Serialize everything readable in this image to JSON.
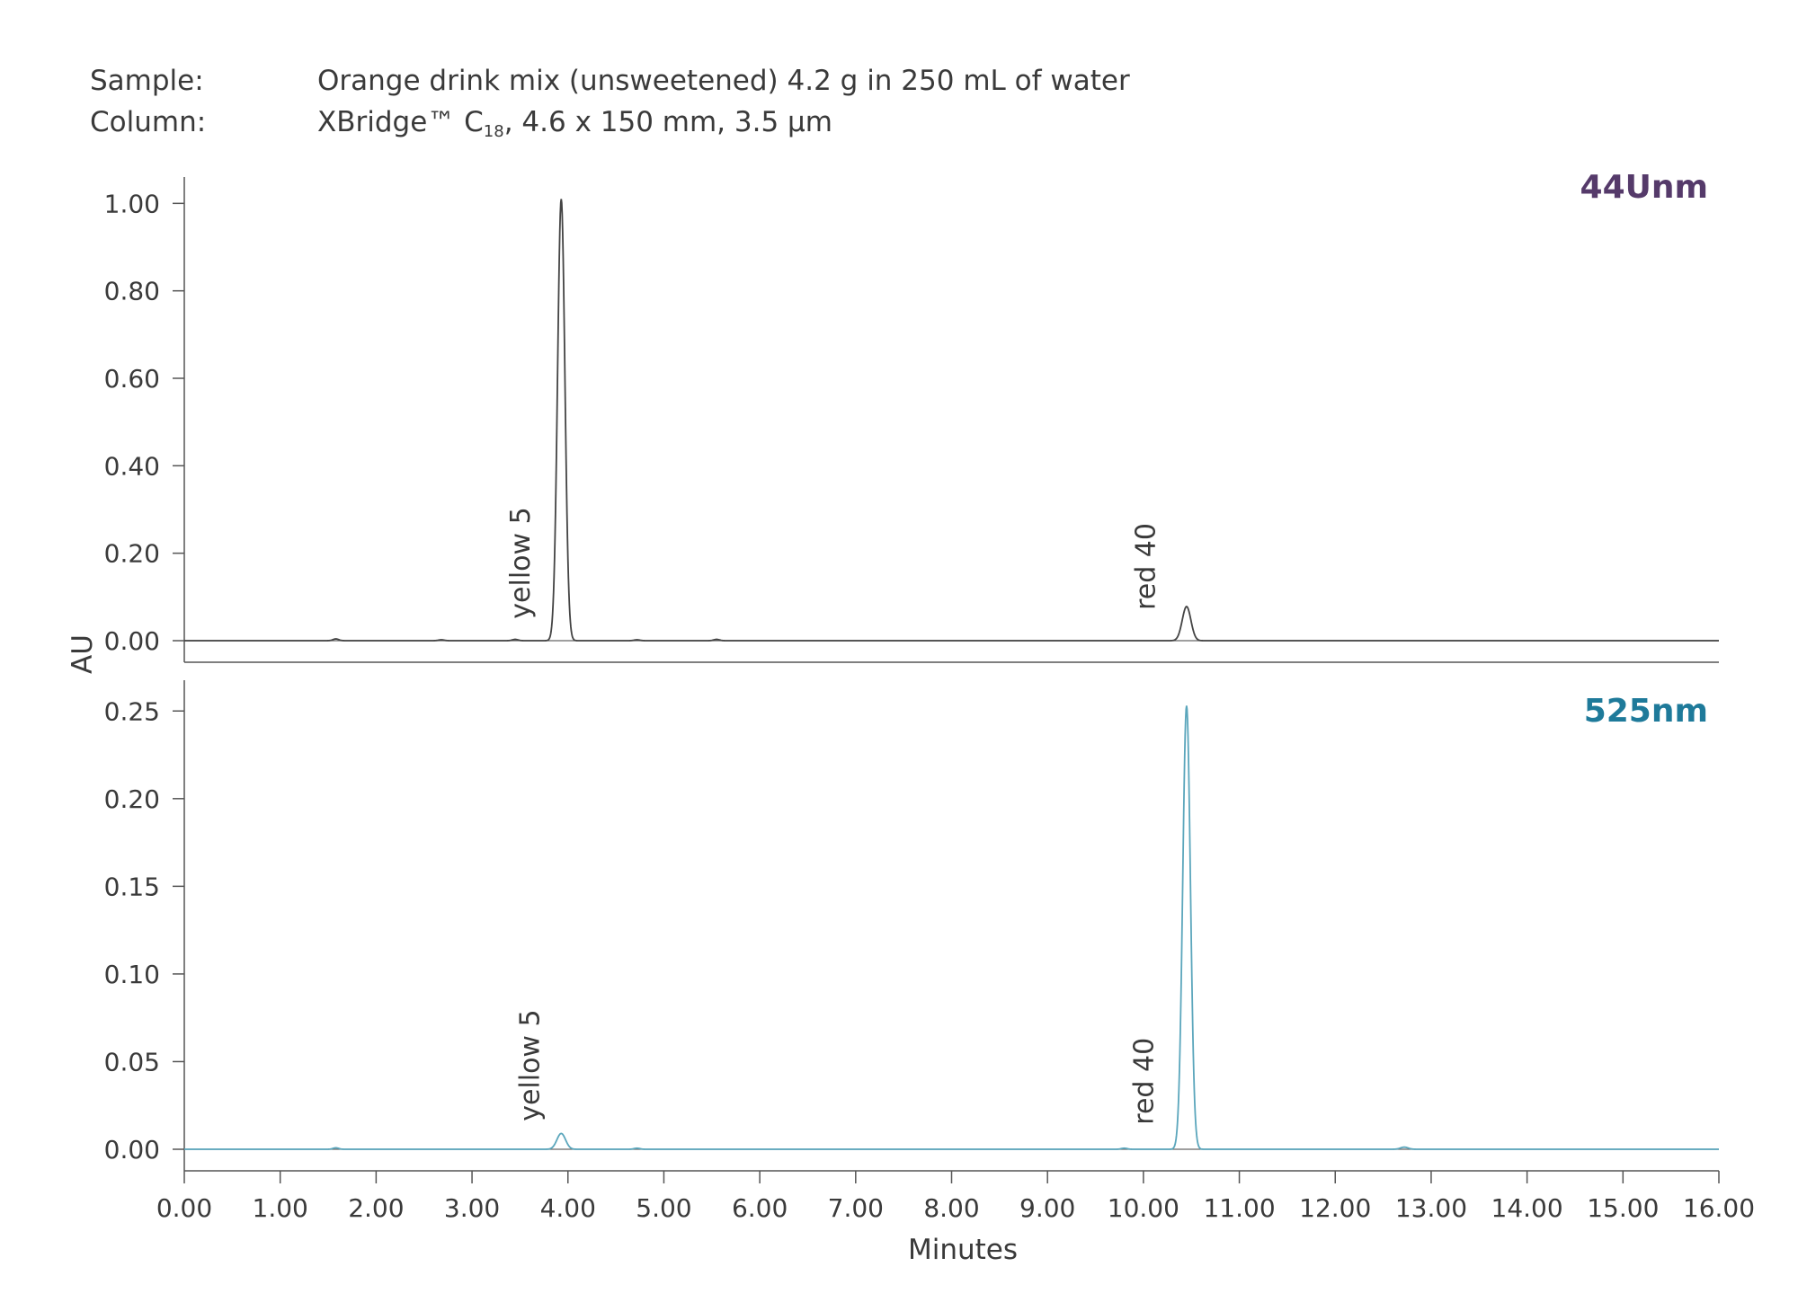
{
  "header": {
    "sample_label": "Sample:",
    "sample_value": "Orange drink mix (unsweetened) 4.2 g in 250 mL of water",
    "column_label": "Column:",
    "column_value_main": "XBridge™ C",
    "column_value_sub": "18",
    "column_value_rest": ", 4.6 x 150 mm, 3.5 µm"
  },
  "chart_data": {
    "type": "line",
    "xlabel": "Minutes",
    "ylabel": "AU",
    "xlim": [
      0,
      16
    ],
    "x_ticks": [
      "0.00",
      "1.00",
      "2.00",
      "3.00",
      "4.00",
      "5.00",
      "6.00",
      "7.00",
      "8.00",
      "9.00",
      "10.00",
      "11.00",
      "12.00",
      "13.00",
      "14.00",
      "15.00",
      "16.00"
    ],
    "panels": [
      {
        "name": "44Unm",
        "color": "#553a6a",
        "line_color": "#444444",
        "ylim": [
          0,
          1.05
        ],
        "y_ticks": [
          "0.00",
          "0.20",
          "0.40",
          "0.60",
          "0.80",
          "1.00"
        ],
        "peaks": [
          {
            "x": 1.58,
            "height": 0.004,
            "sigma": 0.03
          },
          {
            "x": 2.68,
            "height": 0.002,
            "sigma": 0.03
          },
          {
            "x": 3.45,
            "height": 0.003,
            "sigma": 0.03
          },
          {
            "x": 3.93,
            "height": 1.01,
            "sigma": 0.038
          },
          {
            "x": 4.72,
            "height": 0.002,
            "sigma": 0.03
          },
          {
            "x": 5.55,
            "height": 0.003,
            "sigma": 0.03
          },
          {
            "x": 10.45,
            "height": 0.078,
            "sigma": 0.045
          }
        ],
        "annotations": [
          {
            "text": "yellow 5",
            "x": 3.6,
            "y": 0.05
          },
          {
            "text": "red 40",
            "x": 10.12,
            "y": 0.07
          }
        ]
      },
      {
        "name": "525nm",
        "color": "#1e7a9a",
        "line_color": "#5ba6bc",
        "ylim": [
          0,
          0.265
        ],
        "y_ticks": [
          "0.00",
          "0.05",
          "0.10",
          "0.15",
          "0.20",
          "0.25"
        ],
        "peaks": [
          {
            "x": 1.58,
            "height": 0.0008,
            "sigma": 0.03
          },
          {
            "x": 3.93,
            "height": 0.009,
            "sigma": 0.045
          },
          {
            "x": 4.72,
            "height": 0.0006,
            "sigma": 0.03
          },
          {
            "x": 9.8,
            "height": 0.0006,
            "sigma": 0.03
          },
          {
            "x": 10.45,
            "height": 0.253,
            "sigma": 0.04
          },
          {
            "x": 12.72,
            "height": 0.0012,
            "sigma": 0.04
          }
        ],
        "annotations": [
          {
            "text": "yellow 5",
            "x": 3.7,
            "y": 0.016
          },
          {
            "text": "red 40",
            "x": 10.1,
            "y": 0.014
          }
        ]
      }
    ]
  }
}
